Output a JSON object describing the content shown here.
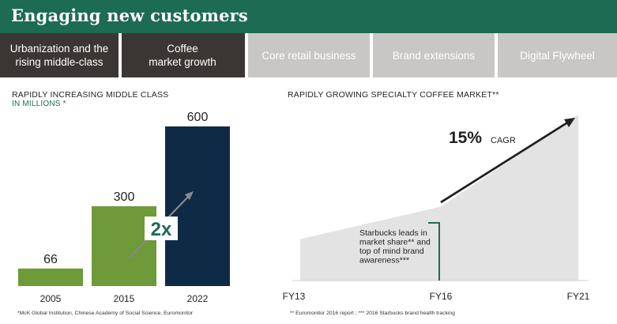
{
  "header": {
    "title": "Engaging new customers"
  },
  "tabs": [
    {
      "label": "Urbanization and the\nrising middle-class",
      "active": true
    },
    {
      "label": "Coffee\nmarket growth",
      "active": true
    },
    {
      "label": "Core retail business",
      "active": false
    },
    {
      "label": "Brand extensions",
      "active": false
    },
    {
      "label": "Digital Flywheel",
      "active": false
    }
  ],
  "left_panel": {
    "title": "RAPIDLY INCREASING MIDDLE CLASS",
    "subtitle": "IN MILLIONS *",
    "badge": "2x",
    "footnote": "*McK Global Institution, Chinese Academy of Social Science, Euromonitor"
  },
  "right_panel": {
    "title": "RAPIDLY GROWING SPECIALTY COFFEE MARKET**",
    "cagr_value": "15%",
    "cagr_label": "CAGR",
    "annotation": "Starbucks leads in\nmarket share** and\ntop of mind brand\nawareness***",
    "footnote": "** Euromonitor 2016 report ; *** 2016 Starbucks brand health tracking"
  },
  "colors": {
    "green": "#6e9a3a",
    "navy": "#0f2a44",
    "header_green": "#1d6b52",
    "area_gray": "#e3e3e3"
  },
  "chart_data": [
    {
      "type": "bar",
      "title": "RAPIDLY INCREASING MIDDLE CLASS",
      "ylabel": "IN MILLIONS *",
      "categories": [
        "2005",
        "2015",
        "2022"
      ],
      "values": [
        66,
        300,
        600
      ],
      "ylim": [
        0,
        600
      ]
    },
    {
      "type": "area",
      "title": "RAPIDLY GROWING SPECIALTY COFFEE MARKET**",
      "x": [
        "FY13",
        "FY16",
        "FY21"
      ],
      "values": [
        1.0,
        1.78,
        4.0
      ],
      "annotation": "15% CAGR"
    }
  ]
}
